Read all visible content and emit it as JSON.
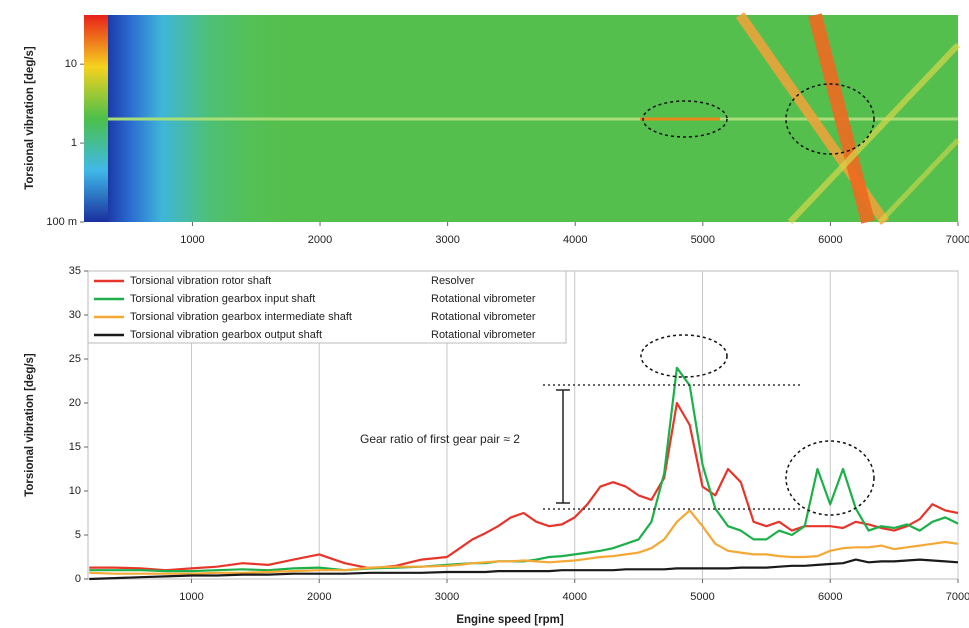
{
  "chart_data": [
    {
      "type": "spectrogram",
      "y_label": "Torsional vibration [deg/s]",
      "log_y": true,
      "xlim": [
        150,
        7000
      ],
      "xticks": [
        1000,
        2000,
        3000,
        4000,
        5000,
        6000,
        7000
      ],
      "ylim": [
        0.1,
        42
      ],
      "yticks": [
        {
          "value": 0.1,
          "label": "100 m"
        },
        1,
        10
      ]
    },
    {
      "type": "line",
      "y_label": "Torsional vibration [deg/s]",
      "x_label": "Engine speed [rpm]",
      "annotation": "Gear ratio of first gear pair ≈ 2",
      "grid": "x",
      "xlim": [
        190,
        7000
      ],
      "xticks": [
        1000,
        2000,
        3000,
        4000,
        5000,
        6000,
        7000
      ],
      "ylim": [
        0,
        35
      ],
      "yticks": [
        0,
        5,
        10,
        15,
        20,
        25,
        30,
        35
      ],
      "x": [
        200,
        400,
        600,
        800,
        1000,
        1200,
        1400,
        1600,
        1800,
        2000,
        2200,
        2400,
        2600,
        2800,
        3000,
        3100,
        3200,
        3300,
        3400,
        3500,
        3600,
        3700,
        3800,
        3900,
        4000,
        4100,
        4200,
        4300,
        4400,
        4500,
        4600,
        4700,
        4800,
        4900,
        5000,
        5100,
        5200,
        5300,
        5400,
        5500,
        5600,
        5700,
        5800,
        5900,
        6000,
        6100,
        6200,
        6300,
        6400,
        6500,
        6600,
        6700,
        6800,
        6900,
        7000
      ],
      "series": [
        {
          "name": "Torsional vibration rotor shaft",
          "sensor": "Resolver",
          "color": "#e8352b",
          "values": [
            1.3,
            1.3,
            1.2,
            1.0,
            1.2,
            1.4,
            1.8,
            1.6,
            2.2,
            2.8,
            1.8,
            1.2,
            1.5,
            2.2,
            2.5,
            3.5,
            4.5,
            5.2,
            6.0,
            7.0,
            7.5,
            6.5,
            6.0,
            6.2,
            7.0,
            8.5,
            10.5,
            11.0,
            10.5,
            9.5,
            9.0,
            11.5,
            20.0,
            17.5,
            10.5,
            9.5,
            12.5,
            11.0,
            6.5,
            6.0,
            6.5,
            5.5,
            6.0,
            6.0,
            6.0,
            5.8,
            6.5,
            6.2,
            5.8,
            5.5,
            6.0,
            6.8,
            8.5,
            7.8,
            7.5
          ]
        },
        {
          "name": "Torsional vibration gearbox input shaft",
          "sensor": "Rotational vibrometer",
          "color": "#1db04a",
          "values": [
            1.0,
            1.0,
            1.0,
            0.9,
            0.9,
            1.0,
            1.1,
            1.0,
            1.2,
            1.3,
            1.0,
            1.2,
            1.3,
            1.4,
            1.6,
            1.7,
            1.8,
            1.8,
            2.0,
            2.0,
            2.0,
            2.2,
            2.5,
            2.6,
            2.8,
            3.0,
            3.2,
            3.5,
            4.0,
            4.5,
            6.5,
            12.0,
            24.0,
            22.0,
            13.0,
            8.0,
            6.0,
            5.5,
            4.5,
            4.5,
            5.5,
            5.0,
            6.0,
            12.5,
            8.5,
            12.5,
            8.0,
            5.5,
            6.0,
            5.8,
            6.2,
            5.5,
            6.5,
            7.0,
            6.3
          ]
        },
        {
          "name": "Torsional vibration gearbox intermediate shaft",
          "sensor": "Rotational vibrometer",
          "color": "#f4a836",
          "values": [
            0.7,
            0.6,
            0.6,
            0.6,
            0.6,
            0.7,
            0.7,
            0.8,
            0.9,
            1.0,
            1.0,
            1.3,
            1.4,
            1.4,
            1.5,
            1.6,
            1.8,
            1.9,
            2.0,
            2.0,
            2.1,
            2.0,
            1.9,
            2.0,
            2.1,
            2.3,
            2.5,
            2.6,
            2.8,
            3.0,
            3.5,
            4.5,
            6.5,
            7.8,
            6.0,
            4.0,
            3.2,
            3.0,
            2.8,
            2.8,
            2.6,
            2.5,
            2.5,
            2.6,
            3.2,
            3.5,
            3.6,
            3.6,
            3.8,
            3.4,
            3.6,
            3.8,
            4.0,
            4.2,
            4.0
          ]
        },
        {
          "name": "Torsional vibration gearbox output shaft",
          "sensor": "Rotational vibrometer",
          "color": "#1a1a1a",
          "values": [
            0.0,
            0.1,
            0.2,
            0.3,
            0.4,
            0.4,
            0.5,
            0.5,
            0.6,
            0.6,
            0.6,
            0.7,
            0.7,
            0.7,
            0.8,
            0.8,
            0.8,
            0.8,
            0.9,
            0.9,
            0.9,
            0.9,
            0.9,
            1.0,
            1.0,
            1.0,
            1.0,
            1.0,
            1.1,
            1.1,
            1.1,
            1.1,
            1.2,
            1.2,
            1.2,
            1.2,
            1.2,
            1.3,
            1.3,
            1.3,
            1.4,
            1.5,
            1.5,
            1.6,
            1.7,
            1.8,
            2.2,
            1.9,
            2.0,
            2.0,
            2.1,
            2.2,
            2.1,
            2.0,
            1.9
          ]
        }
      ]
    }
  ]
}
